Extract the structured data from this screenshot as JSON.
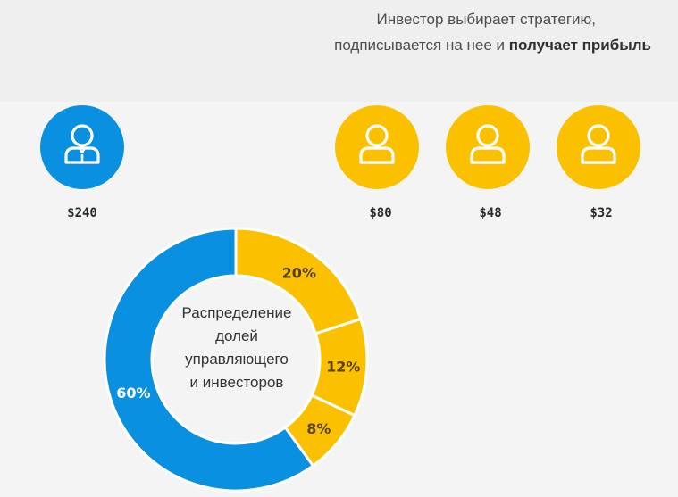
{
  "intro": {
    "line1": "Инвестор выбирает стратегию,",
    "line2_prefix": "подписывается на нее и ",
    "line2_bold": "получает прибыль"
  },
  "colors": {
    "manager": "#0a90e0",
    "investor": "#fbc100",
    "icon_stroke": "#ffffff",
    "background": "#f4f4f4"
  },
  "participants": [
    {
      "role": "manager",
      "icon": "manager-person-icon",
      "amount": "$240"
    },
    {
      "role": "investor",
      "icon": "investor-person-icon",
      "amount": "$80"
    },
    {
      "role": "investor",
      "icon": "investor-person-icon",
      "amount": "$48"
    },
    {
      "role": "investor",
      "icon": "investor-person-icon",
      "amount": "$32"
    }
  ],
  "donut": {
    "center_label": [
      "Распределение",
      "долей",
      "управляющего",
      "и инвесторов"
    ],
    "segments": [
      {
        "label": "20%",
        "value": 20,
        "role": "investor"
      },
      {
        "label": "12%",
        "value": 12,
        "role": "investor"
      },
      {
        "label": "8%",
        "value": 8,
        "role": "investor"
      },
      {
        "label": "60%",
        "value": 60,
        "role": "manager"
      }
    ]
  }
}
